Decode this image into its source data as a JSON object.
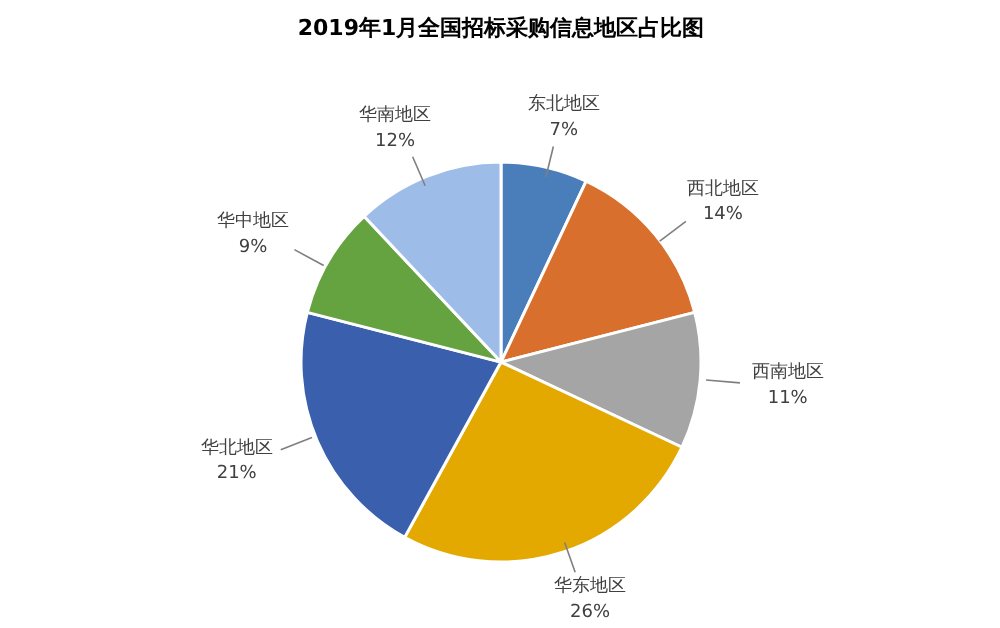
{
  "chart_data": {
    "type": "pie",
    "title": "2019年1月全国招标采购信息地区占比图",
    "categories": [
      "东北地区",
      "西北地区",
      "西南地区",
      "华东地区",
      "华北地区",
      "华中地区",
      "华南地区"
    ],
    "values": [
      7,
      14,
      11,
      26,
      21,
      9,
      12
    ],
    "value_labels": [
      "7%",
      "14%",
      "11%",
      "26%",
      "21%",
      "9%",
      "12%"
    ],
    "colors": [
      "#4a7ebb",
      "#d86f2c",
      "#a5a5a5",
      "#e3a900",
      "#3a60ad",
      "#64a340",
      "#9dbde8"
    ]
  }
}
